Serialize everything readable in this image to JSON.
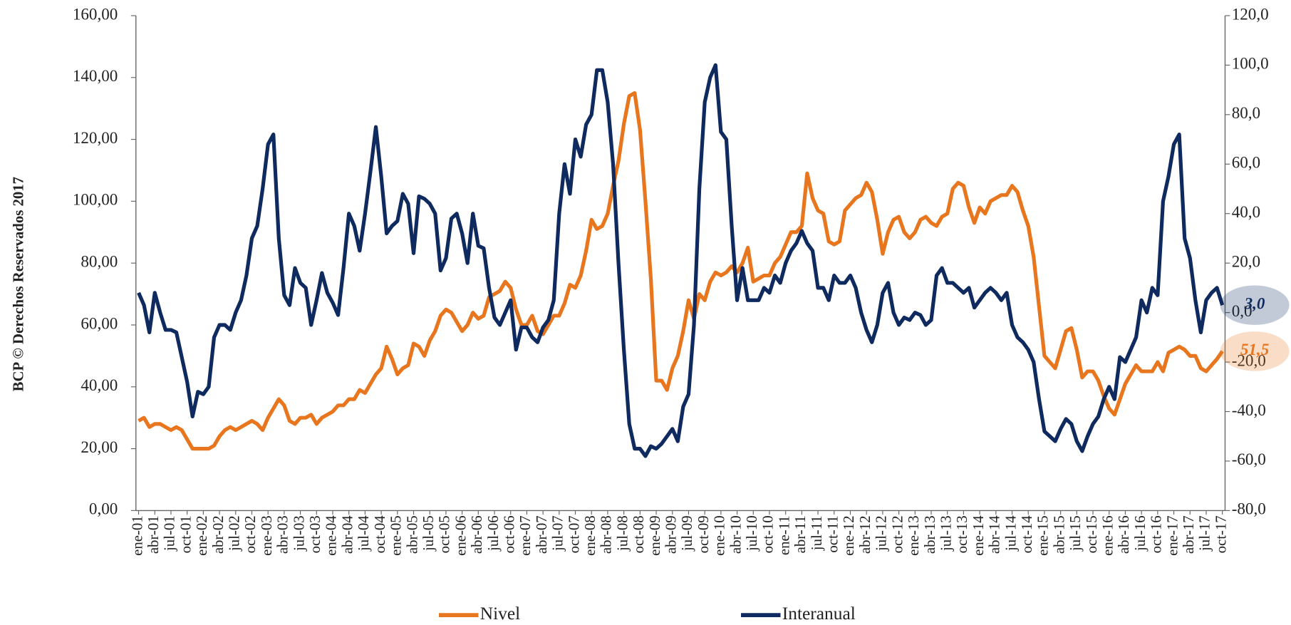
{
  "chart_data": {
    "type": "line",
    "side_note": "BCP © Derechos Reservados 2017",
    "categories": [
      "ene-01",
      null,
      null,
      "abr-01",
      null,
      null,
      "jul-01",
      null,
      null,
      "oct-01",
      null,
      null,
      "ene-02",
      null,
      null,
      "abr-02",
      null,
      null,
      "jul-02",
      null,
      null,
      "oct-02",
      null,
      null,
      "ene-03",
      null,
      null,
      "abr-03",
      null,
      null,
      "jul-03",
      null,
      null,
      "oct-03",
      null,
      null,
      "ene-04",
      null,
      null,
      "abr-04",
      null,
      null,
      "jul-04",
      null,
      null,
      "oct-04",
      null,
      null,
      "ene-05",
      null,
      null,
      "abr-05",
      null,
      null,
      "jul-05",
      null,
      null,
      "oct-05",
      null,
      null,
      "ene-06",
      null,
      null,
      "abr-06",
      null,
      null,
      "jul-06",
      null,
      null,
      "oct-06",
      null,
      null,
      "ene-07",
      null,
      null,
      "abr-07",
      null,
      null,
      "jul-07",
      null,
      null,
      "oct-07",
      null,
      null,
      "ene-08",
      null,
      null,
      "abr-08",
      null,
      null,
      "jul-08",
      null,
      null,
      "oct-08",
      null,
      null,
      "ene-09",
      null,
      null,
      "abr-09",
      null,
      null,
      "jul-09",
      null,
      null,
      "oct-09",
      null,
      null,
      "ene-10",
      null,
      null,
      "abr-10",
      null,
      null,
      "jul-10",
      null,
      null,
      "oct-10",
      null,
      null,
      "ene-11",
      null,
      null,
      "abr-11",
      null,
      null,
      "jul-11",
      null,
      null,
      "oct-11",
      null,
      null,
      "ene-12",
      null,
      null,
      "abr-12",
      null,
      null,
      "jul-12",
      null,
      null,
      "oct-12",
      null,
      null,
      "ene-13",
      null,
      null,
      "abr-13",
      null,
      null,
      "jul-13",
      null,
      null,
      "oct-13",
      null,
      null,
      "ene-14",
      null,
      null,
      "abr-14",
      null,
      null,
      "jul-14",
      null,
      null,
      "oct-14",
      null,
      null,
      "ene-15",
      null,
      null,
      "abr-15",
      null,
      null,
      "jul-15",
      null,
      null,
      "oct-15",
      null,
      null,
      "ene-16",
      null,
      null,
      "abr-16",
      null,
      null,
      "jul-16",
      null,
      null,
      "oct-16",
      null,
      null,
      "ene-17",
      null,
      null,
      "abr-17",
      null,
      null,
      "jul-17",
      null,
      null,
      "oct-17"
    ],
    "series": [
      {
        "name": "Nivel",
        "color": "#e8761e",
        "axis": "y",
        "values": [
          29,
          30,
          27,
          28,
          28,
          27,
          26,
          27,
          26,
          23,
          20,
          20,
          20,
          20,
          21,
          24,
          26,
          27,
          26,
          27,
          28,
          29,
          28,
          26,
          30,
          33,
          36,
          34,
          29,
          28,
          30,
          30,
          31,
          28,
          30,
          31,
          32,
          34,
          34,
          36,
          36,
          39,
          38,
          41,
          44,
          46,
          53,
          49,
          44,
          46,
          47,
          54,
          53,
          50,
          55,
          58,
          63,
          65,
          64,
          61,
          58,
          60,
          64,
          62,
          63,
          69,
          70,
          71,
          74,
          72,
          65,
          60,
          60,
          63,
          58,
          57,
          60,
          63,
          63,
          67,
          73,
          72,
          76,
          84,
          94,
          91,
          92,
          96,
          105,
          113,
          125,
          134,
          135,
          123,
          100,
          75,
          42,
          42,
          39,
          46,
          50,
          58,
          68,
          62,
          70,
          68,
          74,
          77,
          76,
          77,
          79,
          77,
          80,
          85,
          74,
          75,
          76,
          76,
          80,
          82,
          86,
          90,
          90,
          92,
          109,
          101,
          97,
          96,
          87,
          86,
          87,
          97,
          99,
          101,
          102,
          106,
          103,
          94,
          83,
          90,
          94,
          95,
          90,
          88,
          90,
          94,
          95,
          93,
          92,
          95,
          96,
          104,
          106,
          105,
          98,
          93,
          98,
          96,
          100,
          101,
          102,
          102,
          105,
          103,
          97,
          92,
          82,
          66,
          50,
          48,
          46,
          52,
          58,
          59,
          52,
          43,
          45,
          45,
          42,
          37,
          33,
          31,
          36,
          41,
          44,
          47,
          45,
          45,
          45,
          48,
          45,
          51,
          52,
          53,
          52,
          50,
          50,
          46,
          45,
          47,
          49,
          51.5
        ],
        "value_labels": [
          null,
          null,
          null,
          null,
          null,
          null,
          null,
          null,
          null,
          null,
          null,
          null,
          null,
          null,
          null,
          null,
          null,
          null,
          null,
          null,
          null,
          null,
          null,
          null,
          null,
          null,
          null,
          null,
          null,
          null,
          null,
          null,
          null,
          null,
          null,
          null,
          null,
          null,
          null,
          null,
          null,
          null,
          null,
          null,
          null,
          null,
          null,
          null,
          null,
          null,
          null,
          null,
          null,
          null,
          null,
          null,
          null,
          null,
          null,
          null,
          null,
          null,
          null,
          null,
          null,
          null,
          null,
          null,
          null,
          null,
          null,
          null,
          null,
          null,
          null,
          null,
          null,
          null,
          null,
          null,
          null,
          null,
          null,
          null,
          null,
          null,
          null,
          null,
          null,
          null,
          null,
          null,
          null,
          null,
          null,
          null,
          null,
          null,
          null,
          null,
          null,
          null,
          null,
          null,
          null,
          null,
          null,
          null,
          null,
          null,
          null,
          null,
          null,
          null,
          null,
          null,
          null,
          null,
          null,
          null,
          null,
          null,
          null,
          null,
          null,
          null,
          null,
          null,
          null,
          null,
          null,
          null,
          null,
          null,
          null,
          null,
          null,
          null,
          null,
          null,
          null,
          null,
          null,
          null,
          null,
          null,
          null,
          null,
          null,
          null,
          null,
          null,
          null,
          null,
          null,
          null,
          null,
          null,
          null,
          null,
          null,
          null,
          null,
          null,
          null,
          null,
          null,
          null,
          null,
          null,
          null,
          null,
          null,
          null,
          null,
          null,
          null,
          null,
          null,
          null,
          null,
          null,
          null,
          null,
          null,
          null,
          null,
          null,
          null,
          null,
          null,
          null,
          null,
          null,
          null,
          null,
          null,
          null,
          null,
          null,
          null,
          "51,5"
        ]
      },
      {
        "name": "Interanual",
        "color": "#0f2a5f",
        "axis": "y2",
        "values": [
          8,
          3,
          -8,
          8,
          0,
          -7,
          -7,
          -8,
          -18,
          -28,
          -42,
          -32,
          -33,
          -30,
          -10,
          -5,
          -5,
          -7,
          0,
          5,
          15,
          30,
          35,
          50,
          68,
          72,
          30,
          7,
          3,
          18,
          12,
          10,
          -5,
          5,
          16,
          8,
          4,
          -1,
          18,
          40,
          35,
          25,
          40,
          57,
          75,
          55,
          32,
          35,
          37,
          48,
          44,
          24,
          47,
          46,
          44,
          40,
          17,
          22,
          38,
          40,
          32,
          20,
          40,
          27,
          26,
          10,
          -2,
          -5,
          0,
          5,
          -15,
          -6,
          -6,
          -10,
          -12,
          -6,
          -3,
          5,
          40,
          60,
          48,
          70,
          63,
          76,
          80,
          98,
          98,
          85,
          60,
          20,
          -15,
          -45,
          -55,
          -55,
          -58,
          -54,
          -55,
          -53,
          -50,
          -47,
          -52,
          -38,
          -33,
          -5,
          50,
          85,
          95,
          100,
          73,
          70,
          35,
          5,
          18,
          5,
          5,
          5,
          10,
          8,
          15,
          12,
          20,
          25,
          28,
          33,
          28,
          25,
          10,
          10,
          5,
          15,
          12,
          12,
          15,
          10,
          0,
          -7,
          -12,
          -5,
          8,
          12,
          0,
          -5,
          -2,
          -3,
          0,
          -1,
          -5,
          -3,
          15,
          18,
          12,
          12,
          10,
          8,
          10,
          2,
          5,
          8,
          10,
          8,
          5,
          8,
          -5,
          -10,
          -12,
          -15,
          -20,
          -35,
          -48,
          -50,
          -52,
          -47,
          -43,
          -45,
          -52,
          -56,
          -50,
          -45,
          -42,
          -35,
          -30,
          -35,
          -18,
          -20,
          -15,
          -10,
          5,
          0,
          10,
          7,
          45,
          55,
          68,
          72,
          30,
          22,
          5,
          -8,
          5,
          8,
          10,
          3.0
        ],
        "value_labels": [
          null,
          null,
          null,
          null,
          null,
          null,
          null,
          null,
          null,
          null,
          null,
          null,
          null,
          null,
          null,
          null,
          null,
          null,
          null,
          null,
          null,
          null,
          null,
          null,
          null,
          null,
          null,
          null,
          null,
          null,
          null,
          null,
          null,
          null,
          null,
          null,
          null,
          null,
          null,
          null,
          null,
          null,
          null,
          null,
          null,
          null,
          null,
          null,
          null,
          null,
          null,
          null,
          null,
          null,
          null,
          null,
          null,
          null,
          null,
          null,
          null,
          null,
          null,
          null,
          null,
          null,
          null,
          null,
          null,
          null,
          null,
          null,
          null,
          null,
          null,
          null,
          null,
          null,
          null,
          null,
          null,
          null,
          null,
          null,
          null,
          null,
          null,
          null,
          null,
          null,
          null,
          null,
          null,
          null,
          null,
          null,
          null,
          null,
          null,
          null,
          null,
          null,
          null,
          null,
          null,
          null,
          null,
          null,
          null,
          null,
          null,
          null,
          null,
          null,
          null,
          null,
          null,
          null,
          null,
          null,
          null,
          null,
          null,
          null,
          null,
          null,
          null,
          null,
          null,
          null,
          null,
          null,
          null,
          null,
          null,
          null,
          null,
          null,
          null,
          null,
          null,
          null,
          null,
          null,
          null,
          null,
          null,
          null,
          null,
          null,
          null,
          null,
          null,
          null,
          null,
          null,
          null,
          null,
          null,
          null,
          null,
          null,
          null,
          null,
          null,
          null,
          null,
          null,
          null,
          null,
          null,
          null,
          null,
          null,
          null,
          null,
          null,
          null,
          null,
          null,
          null,
          null,
          null,
          null,
          null,
          null,
          null,
          null,
          null,
          null,
          null,
          null,
          null,
          null,
          null,
          null,
          null,
          null,
          null,
          null,
          null,
          "3,0"
        ]
      }
    ],
    "ylim": [
      0,
      160
    ],
    "yticks": [
      {
        "value": 0,
        "label": "0,00"
      },
      {
        "value": 20,
        "label": "20,00"
      },
      {
        "value": 40,
        "label": "40,00"
      },
      {
        "value": 60,
        "label": "60,00"
      },
      {
        "value": 80,
        "label": "80,00"
      },
      {
        "value": 100,
        "label": "100,00"
      },
      {
        "value": 120,
        "label": "120,00"
      },
      {
        "value": 140,
        "label": "140,00"
      },
      {
        "value": 160,
        "label": "160,00"
      }
    ],
    "y2lim": [
      -80,
      120
    ],
    "y2ticks": [
      {
        "value": -80,
        "label": "-80,0"
      },
      {
        "value": -60,
        "label": "-60,0"
      },
      {
        "value": -40,
        "label": "-40,0"
      },
      {
        "value": -20,
        "label": "-20,0"
      },
      {
        "value": 0,
        "label": "0,0"
      },
      {
        "value": 20,
        "label": "20,0"
      },
      {
        "value": 40,
        "label": "40,0"
      },
      {
        "value": 60,
        "label": "60,0"
      },
      {
        "value": 80,
        "label": "80,0"
      },
      {
        "value": 100,
        "label": "100,0"
      },
      {
        "value": 120,
        "label": "120,0"
      }
    ],
    "grid": false,
    "legend": "bottom"
  }
}
